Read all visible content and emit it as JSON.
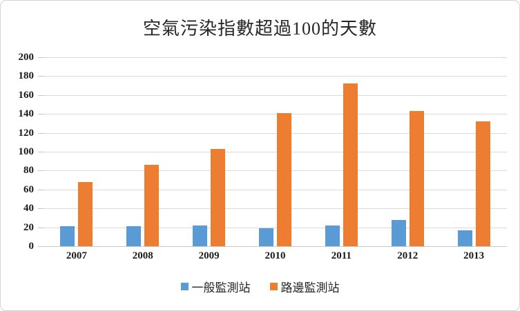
{
  "chart_data": {
    "type": "bar",
    "title": "空氣污染指數超過100的天數",
    "categories": [
      "2007",
      "2008",
      "2009",
      "2010",
      "2011",
      "2012",
      "2013"
    ],
    "series": [
      {
        "name": "一般監測站",
        "color": "#5B9BD5",
        "values": [
          21,
          21,
          22,
          19,
          22,
          28,
          17
        ]
      },
      {
        "name": "路邊監測站",
        "color": "#ED7D31",
        "values": [
          68,
          86,
          103,
          141,
          172,
          143,
          132
        ]
      }
    ],
    "xlabel": "",
    "ylabel": "",
    "ylim": [
      0,
      200
    ],
    "ytick_step": 20,
    "ytick_labels": [
      "0",
      "20",
      "40",
      "60",
      "80",
      "100",
      "120",
      "140",
      "160",
      "180",
      "200"
    ],
    "grid": "horizontal-only",
    "gridline_color": "#D9D9D9",
    "legend_position": "bottom",
    "axis_text_color": "#1A1A1A"
  }
}
